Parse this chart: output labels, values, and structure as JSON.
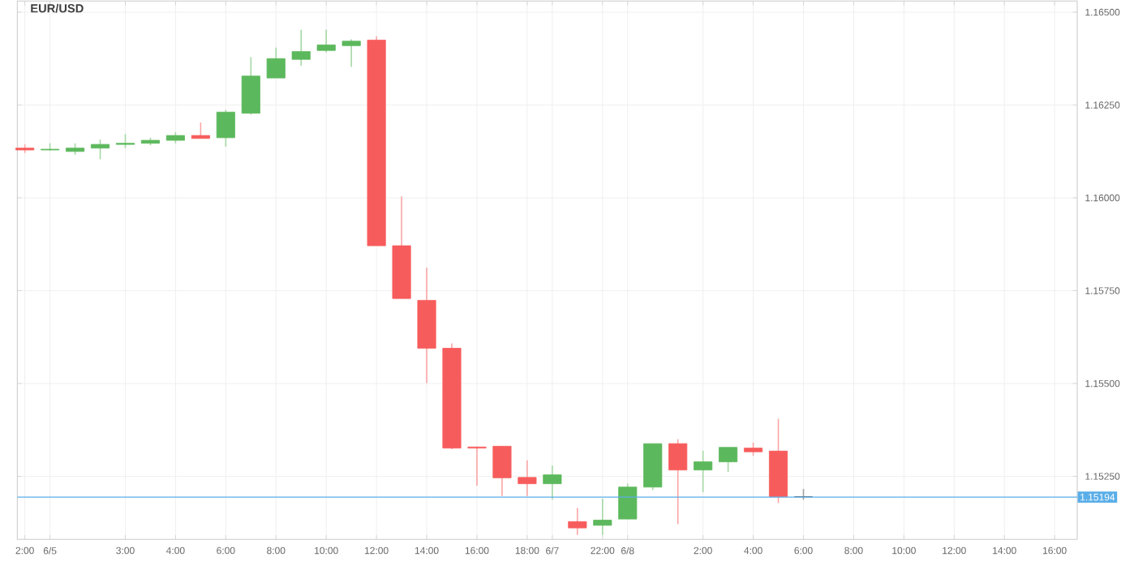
{
  "chart_data": {
    "type": "candlestick",
    "title": "EUR/USD",
    "categories": [
      "2:00",
      "6/5",
      null,
      null,
      "3:00",
      null,
      "4:00",
      null,
      "6:00",
      null,
      "8:00",
      null,
      "10:00",
      null,
      "12:00",
      null,
      "14:00",
      null,
      "16:00",
      null,
      "18:00",
      "6/7",
      null,
      "22:00",
      "6/8",
      null,
      null,
      "2:00",
      null,
      "4:00",
      null,
      "6:00",
      null,
      "8:00",
      null,
      "10:00",
      null,
      "12:00",
      null,
      "14:00",
      null,
      "16:00"
    ],
    "ohlc": [
      [
        1.16134,
        1.16144,
        1.16121,
        1.16129
      ],
      [
        1.16129,
        1.16147,
        1.16127,
        1.16131
      ],
      [
        1.16125,
        1.16147,
        1.16116,
        1.16134
      ],
      [
        1.16134,
        1.16157,
        1.16104,
        1.16144
      ],
      [
        1.16144,
        1.16172,
        1.16134,
        1.16147
      ],
      [
        1.16147,
        1.16162,
        1.16142,
        1.16155
      ],
      [
        1.16155,
        1.16177,
        1.16147,
        1.16168
      ],
      [
        1.16168,
        1.16203,
        1.1616,
        1.1616
      ],
      [
        1.16162,
        1.16237,
        1.16138,
        1.16231
      ],
      [
        1.16228,
        1.16379,
        1.16224,
        1.16328
      ],
      [
        1.16323,
        1.16405,
        1.16323,
        1.16375
      ],
      [
        1.16373,
        1.16453,
        1.16356,
        1.16394
      ],
      [
        1.16397,
        1.16453,
        1.16392,
        1.16412
      ],
      [
        1.1641,
        1.16427,
        1.16353,
        1.16422
      ],
      [
        1.16425,
        1.16435,
        1.15871,
        1.15871
      ],
      [
        1.15871,
        1.16004,
        1.15729,
        1.15729
      ],
      [
        1.15724,
        1.15812,
        1.15501,
        1.15595
      ],
      [
        1.15595,
        1.15608,
        1.15323,
        1.15326
      ],
      [
        1.15329,
        1.1533,
        1.15225,
        1.15326
      ],
      [
        1.15331,
        1.15331,
        1.15197,
        1.15246
      ],
      [
        1.15247,
        1.15293,
        1.15197,
        1.1523
      ],
      [
        1.1523,
        1.15279,
        1.15187,
        1.15254
      ],
      [
        1.15128,
        1.15165,
        1.15092,
        1.15111
      ],
      [
        1.15118,
        1.1519,
        1.15092,
        1.15132
      ],
      [
        1.15135,
        1.1523,
        1.15135,
        1.15221
      ],
      [
        1.15221,
        1.15338,
        1.15213,
        1.15338
      ],
      [
        1.15338,
        1.1535,
        1.15121,
        1.15267
      ],
      [
        1.15267,
        1.15319,
        1.15207,
        1.15289
      ],
      [
        1.15289,
        1.15328,
        1.15262,
        1.15328
      ],
      [
        1.15326,
        1.15341,
        1.15305,
        1.15316
      ],
      [
        1.15318,
        1.15405,
        1.15178,
        1.15195
      ],
      [
        1.15195,
        1.15216,
        1.15187,
        1.15195
      ],
      null,
      null,
      null,
      null,
      null,
      null,
      null,
      null,
      null,
      null
    ],
    "colors": [
      "#f75c5c",
      "#5cb85c",
      "#5cb85c",
      "#5cb85c",
      "#5cb85c",
      "#5cb85c",
      "#5cb85c",
      "#f75c5c",
      "#5cb85c",
      "#5cb85c",
      "#5cb85c",
      "#5cb85c",
      "#5cb85c",
      "#5cb85c",
      "#f75c5c",
      "#f75c5c",
      "#f75c5c",
      "#f75c5c",
      "#f75c5c",
      "#f75c5c",
      "#f75c5c",
      "#5cb85c",
      "#f75c5c",
      "#5cb85c",
      "#5cb85c",
      "#5cb85c",
      "#f75c5c",
      "#5cb85c",
      "#5cb85c",
      "#f75c5c",
      "#f75c5c",
      "#555555",
      null,
      null,
      null,
      null,
      null,
      null,
      null,
      null,
      null,
      null
    ],
    "ylim": [
      1.1508,
      1.1653
    ],
    "yticks": [
      {
        "value": 1.1525,
        "label": "1.15250"
      },
      {
        "value": 1.155,
        "label": "1.15500"
      },
      {
        "value": 1.1575,
        "label": "1.15750"
      },
      {
        "value": 1.16,
        "label": "1.16000"
      },
      {
        "value": 1.1625,
        "label": "1.16250"
      },
      {
        "value": 1.165,
        "label": "1.16500"
      }
    ],
    "grid": true,
    "ref_lines": [
      {
        "axis": "y",
        "value": 1.15194,
        "label": "1.15194",
        "color": "#5aaee8"
      }
    ]
  }
}
